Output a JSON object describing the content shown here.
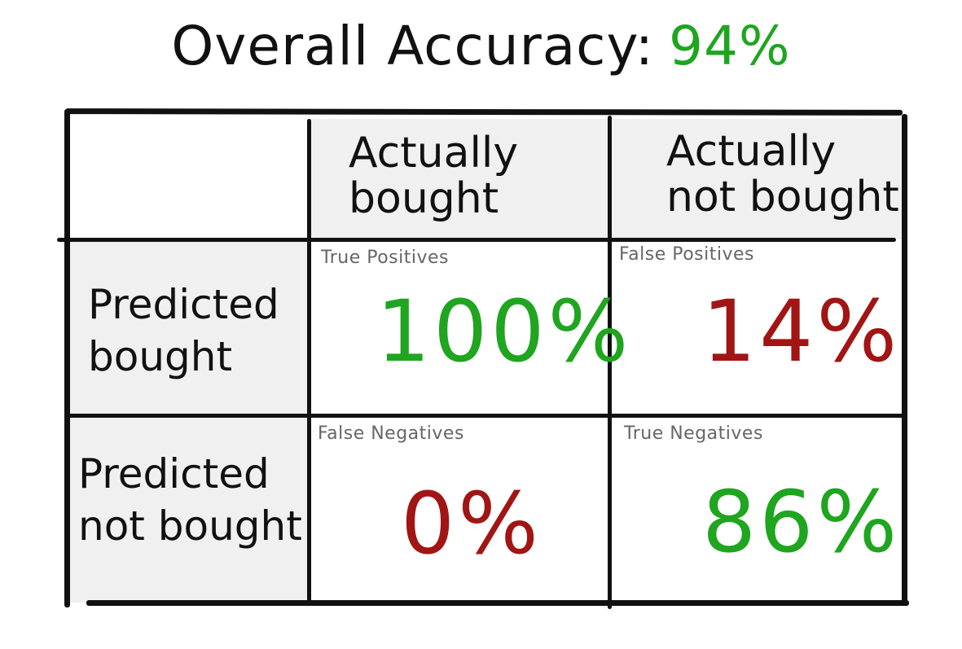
{
  "title": {
    "label": "Overall Accuracy:",
    "value": "94%"
  },
  "colors": {
    "good": "#1fa51f",
    "bad": "#a11515",
    "ink": "#111111",
    "muted": "#666666",
    "shade": "#f0f0f0"
  },
  "columns": [
    {
      "line1": "Actually",
      "line2": "bought"
    },
    {
      "line1": "Actually",
      "line2": "not bought"
    }
  ],
  "rows": [
    {
      "line1": "Predicted",
      "line2": "bought"
    },
    {
      "line1": "Predicted",
      "line2": "not bought"
    }
  ],
  "cells": {
    "tp": {
      "label": "True Positives",
      "value": "100%"
    },
    "fp": {
      "label": "False Positives",
      "value": "14%"
    },
    "fn": {
      "label": "False Negatives",
      "value": "0%"
    },
    "tn": {
      "label": "True Negatives",
      "value": "86%"
    }
  }
}
